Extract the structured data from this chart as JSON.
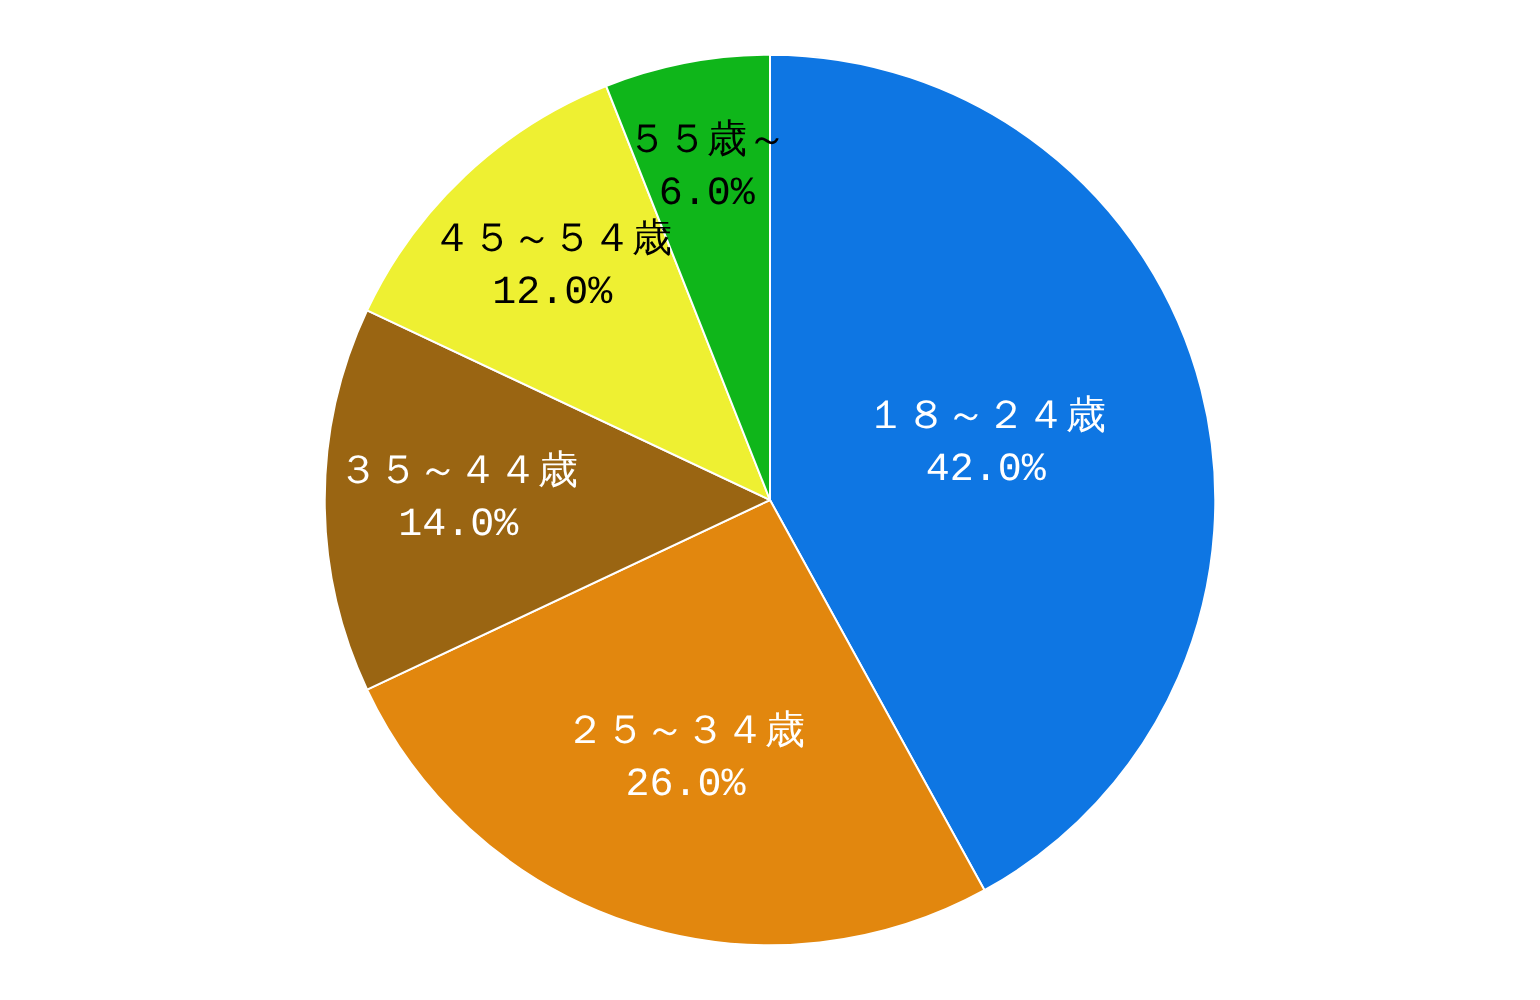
{
  "chart_data": {
    "type": "pie",
    "categories": [
      "１８～２４歳",
      "２５～３４歳",
      "３５～４４歳",
      "４５～５４歳",
      "５５歳～"
    ],
    "values": [
      42,
      26,
      14,
      12,
      6
    ],
    "value_labels": [
      "42.0%",
      "26.0%",
      "14.0%",
      "12.0%",
      "6.0%"
    ],
    "colors": [
      "#0e76e3",
      "#e2870e",
      "#9a6512",
      "#eef032",
      "#0fb61a"
    ],
    "legend": false
  }
}
